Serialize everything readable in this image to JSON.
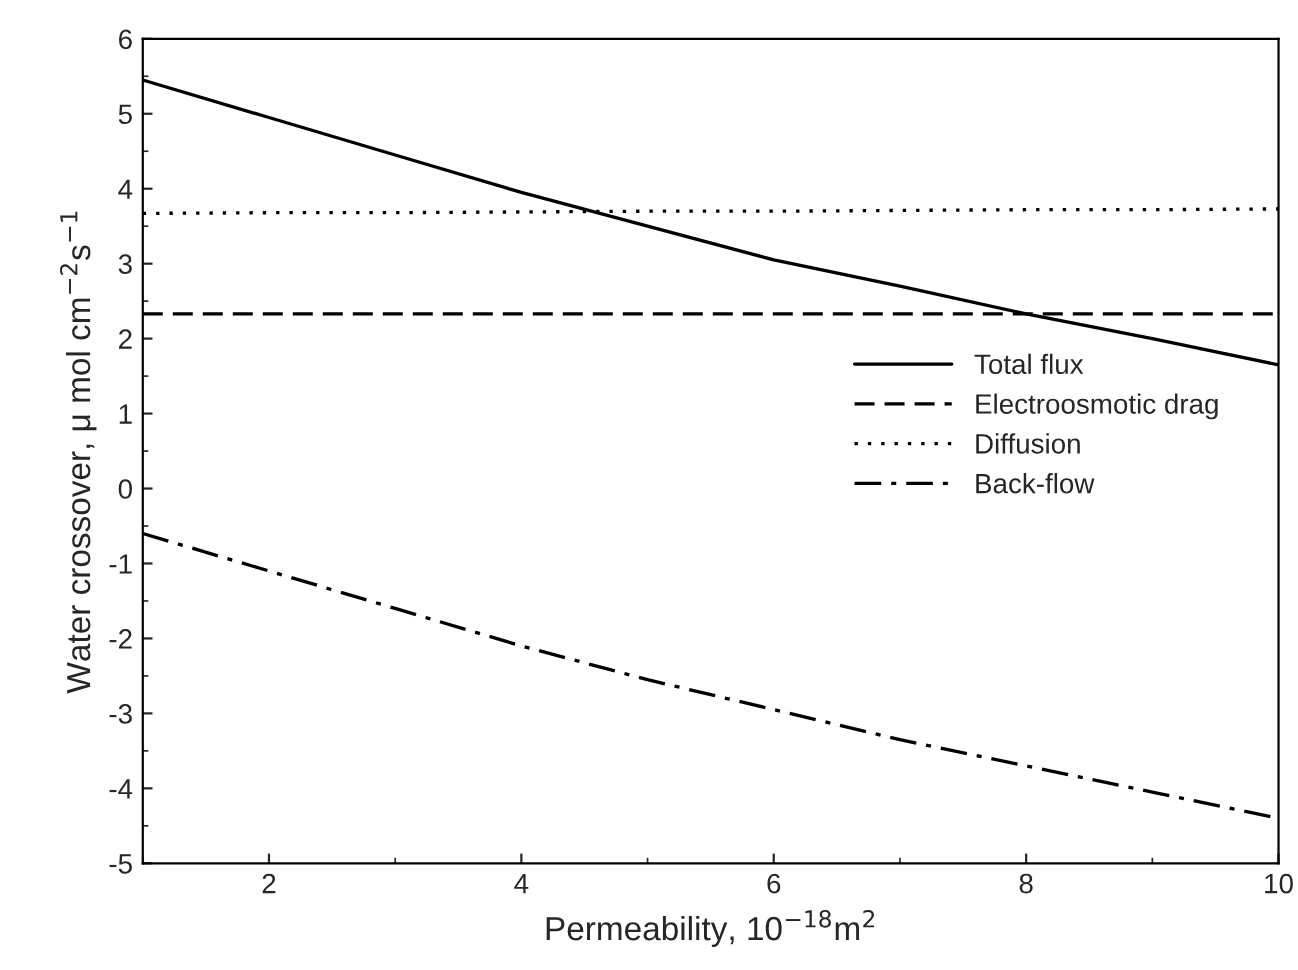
{
  "chart_data": {
    "type": "line",
    "xlabel": "Permeability, 10$^{−18}$m$^{2}$",
    "ylabel": "Water crossover, μ mol cm$^{−2}$s$^{−1}$",
    "x": [
      1,
      2,
      3,
      4,
      5,
      6,
      7,
      8,
      9,
      10
    ],
    "series": [
      {
        "name": "Total flux",
        "color": "#000000",
        "line_style": "solid",
        "values": [
          5.45,
          4.95,
          4.45,
          3.95,
          3.5,
          3.05,
          2.7,
          2.33,
          2.0,
          1.65
        ]
      },
      {
        "name": "Electroosmotic drag",
        "color": "#000000",
        "line_style": "dashed",
        "values": [
          2.33,
          2.33,
          2.33,
          2.33,
          2.33,
          2.33,
          2.33,
          2.33,
          2.33,
          2.33
        ]
      },
      {
        "name": "Diffusion",
        "color": "#000000",
        "line_style": "dotted",
        "values": [
          3.67,
          3.68,
          3.68,
          3.69,
          3.7,
          3.7,
          3.71,
          3.72,
          3.72,
          3.73
        ]
      },
      {
        "name": "Back-flow",
        "color": "#000000",
        "line_style": "dashdot",
        "values": [
          -0.6,
          -1.1,
          -1.6,
          -2.1,
          -2.55,
          -2.95,
          -3.35,
          -3.7,
          -4.05,
          -4.4
        ]
      }
    ],
    "xlim": [
      1,
      10
    ],
    "xticks": [
      2,
      4,
      6,
      8,
      10
    ],
    "ylim": [
      -5,
      6
    ],
    "yticks": [
      -5,
      -4,
      -3,
      -2,
      -1,
      0,
      1,
      2,
      3,
      4,
      5,
      6
    ],
    "grid": false,
    "legend": "right",
    "marker": "none"
  }
}
